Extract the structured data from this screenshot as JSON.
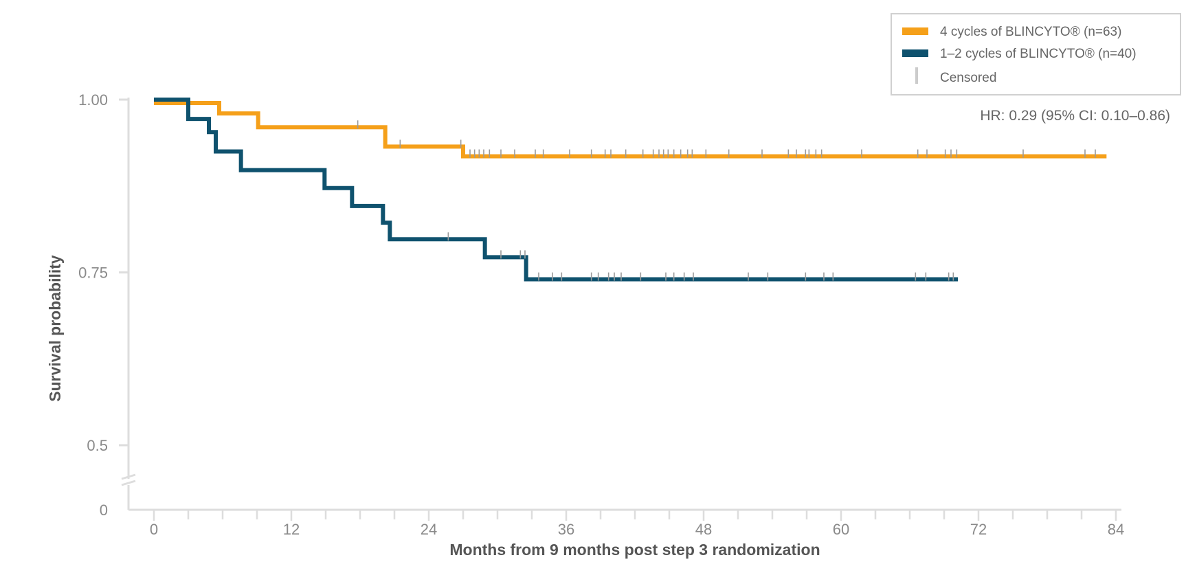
{
  "chart_data": {
    "type": "line",
    "subtype": "kaplan-meier",
    "xlabel": "Months from 9 months post step 3 randomization",
    "ylabel": "Survival probability",
    "x_ticks": [
      0,
      12,
      24,
      36,
      48,
      60,
      72,
      84
    ],
    "x_tick_labels": [
      "0",
      "12",
      "24",
      "36",
      "48",
      "60",
      "72",
      "84"
    ],
    "xlim": [
      0,
      84
    ],
    "y_ticks": [
      1.0,
      0.75,
      0.5,
      0
    ],
    "y_tick_labels": [
      "1.00",
      "0.75",
      "0.5",
      "0"
    ],
    "ylim": [
      0,
      1.0
    ],
    "y_axis_break": true,
    "grid": false,
    "legend_position": "top-right",
    "annotation": "HR: 0.29 (95% CI: 0.10–0.86)",
    "censored_label": "Censored",
    "censored_color": "#cccccc",
    "series": [
      {
        "name": "4 cycles of BLINCYTO® (n=63)",
        "color": "#f5a01a",
        "steps": [
          [
            0,
            0.995
          ],
          [
            5.7,
            0.98
          ],
          [
            9.1,
            0.96
          ],
          [
            20.2,
            0.932
          ],
          [
            27,
            0.918
          ],
          [
            83,
            0.915
          ]
        ],
        "censored": [
          17.8,
          21.5,
          26.8,
          27.6,
          28.0,
          28.4,
          28.8,
          29.3,
          30.3,
          31.5,
          33.3,
          34.0,
          36.3,
          38.2,
          39.4,
          39.9,
          41.2,
          42.7,
          43.6,
          44.1,
          44.5,
          44.9,
          45.4,
          46.0,
          46.6,
          47.0,
          48.2,
          50.2,
          53.1,
          55.4,
          56.1,
          56.9,
          57.2,
          57.8,
          58.3,
          61.8,
          66.7,
          67.5,
          69.1,
          69.6,
          70.1,
          75.9,
          81.3,
          82.2
        ]
      },
      {
        "name": "1–2 cycles of BLINCYTO® (n=40)",
        "color": "#0f526e",
        "steps": [
          [
            0,
            1.0
          ],
          [
            3.0,
            0.972
          ],
          [
            4.8,
            0.953
          ],
          [
            5.4,
            0.925
          ],
          [
            7.6,
            0.898
          ],
          [
            14.9,
            0.872
          ],
          [
            17.3,
            0.846
          ],
          [
            20.0,
            0.822
          ],
          [
            20.6,
            0.798
          ],
          [
            28.9,
            0.772
          ],
          [
            32.5,
            0.74
          ],
          [
            70.2,
            0.74
          ]
        ],
        "censored": [
          25.7,
          30.3,
          32.0,
          32.4,
          33.6,
          34.8,
          35.6,
          38.2,
          38.8,
          39.7,
          40.2,
          40.8,
          42.5,
          44.7,
          45.4,
          46.3,
          47.1,
          51.9,
          53.6,
          56.9,
          58.5,
          59.3,
          66.5,
          67.4,
          69.4,
          69.8
        ]
      }
    ]
  }
}
